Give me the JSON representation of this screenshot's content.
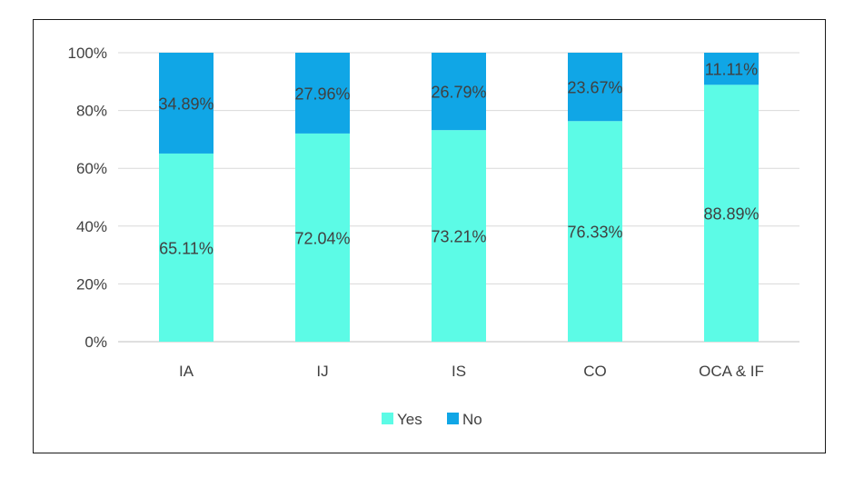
{
  "chart_data": {
    "type": "bar",
    "stacked": true,
    "categories": [
      "IA",
      "IJ",
      "IS",
      "CO",
      "OCA & IF"
    ],
    "series": [
      {
        "name": "Yes",
        "color": "#5cfbe6",
        "values": [
          65.11,
          72.04,
          73.21,
          76.33,
          88.89
        ],
        "labels": [
          "65.11%",
          "72.04%",
          "73.21%",
          "76.33%",
          "88.89%"
        ]
      },
      {
        "name": "No",
        "color": "#10a6e6",
        "values": [
          34.89,
          27.96,
          26.79,
          23.67,
          11.11
        ],
        "labels": [
          "34.89%",
          "27.96%",
          "26.79%",
          "23.67%",
          "11.11%"
        ]
      }
    ],
    "y_ticks": [
      "0%",
      "20%",
      "40%",
      "60%",
      "80%",
      "100%"
    ],
    "ylim": [
      0,
      100
    ],
    "grid": true,
    "legend": "bottom"
  }
}
